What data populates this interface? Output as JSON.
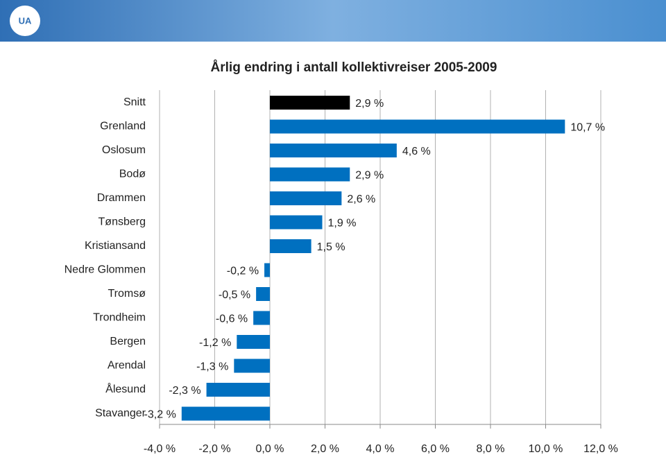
{
  "header": {
    "logo": "UA"
  },
  "chart_data": {
    "type": "bar",
    "orientation": "horizontal",
    "title": "Årlig endring i antall kollektivreiser 2005-2009",
    "categories": [
      "Snitt",
      "Grenland",
      "Oslosum",
      "Bodø",
      "Drammen",
      "Tønsberg",
      "Kristiansand",
      "Nedre Glommen",
      "Tromsø",
      "Trondheim",
      "Bergen",
      "Arendal",
      "Ålesund",
      "Stavanger"
    ],
    "values": [
      2.9,
      10.7,
      4.6,
      2.9,
      2.6,
      1.9,
      1.5,
      -0.2,
      -0.5,
      -0.6,
      -1.2,
      -1.3,
      -2.3,
      -3.2
    ],
    "value_labels": [
      "2,9 %",
      "10,7 %",
      "4,6 %",
      "2,9 %",
      "2,6 %",
      "1,9 %",
      "1,5 %",
      "-0,2 %",
      "-0,5 %",
      "-0,6 %",
      "-1,2 %",
      "-1,3 %",
      "-2,3 %",
      "-3,2 %"
    ],
    "colors": [
      "#000000",
      "#0070c0",
      "#0070c0",
      "#0070c0",
      "#0070c0",
      "#0070c0",
      "#0070c0",
      "#0070c0",
      "#0070c0",
      "#0070c0",
      "#0070c0",
      "#0070c0",
      "#0070c0",
      "#0070c0"
    ],
    "xlim": [
      -4,
      12
    ],
    "xticks": [
      {
        "value": -4,
        "label": "-4,0 %"
      },
      {
        "value": -2,
        "label": "-2,0 %"
      },
      {
        "value": 0,
        "label": "0,0 %"
      },
      {
        "value": 2,
        "label": "2,0 %"
      },
      {
        "value": 4,
        "label": "4,0 %"
      },
      {
        "value": 6,
        "label": "6,0 %"
      },
      {
        "value": 8,
        "label": "8,0 %"
      },
      {
        "value": 10,
        "label": "10,0 %"
      },
      {
        "value": 12,
        "label": "12,0 %"
      }
    ],
    "grid": true
  }
}
